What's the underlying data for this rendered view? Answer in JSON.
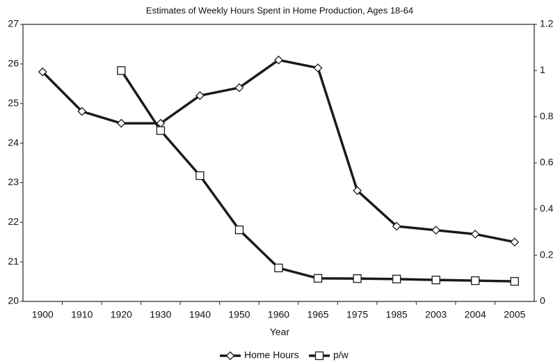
{
  "chart_data": {
    "type": "line",
    "title": "Estimates of Weekly Hours Spent in Home Production, Ages 18-64",
    "x_label": "Year",
    "categories": [
      "1900",
      "1910",
      "1920",
      "1930",
      "1940",
      "1950",
      "1960",
      "1965",
      "1975",
      "1985",
      "2003",
      "2004",
      "2005"
    ],
    "series": [
      {
        "name": "Home Hours",
        "color": "#1a1a1a",
        "marker": "diamond",
        "values": [
          25.8,
          24.8,
          24.5,
          24.5,
          25.2,
          25.4,
          26.1,
          25.9,
          22.8,
          21.9,
          21.8,
          21.7,
          21.5
        ]
      },
      {
        "name": "p/w",
        "color": "#1a1a1a",
        "marker": "square",
        "axis": "y2",
        "values": [
          null,
          null,
          1.0,
          0.74,
          0.545,
          0.31,
          0.145,
          0.1,
          0.099,
          0.097,
          0.093,
          0.09,
          0.087
        ]
      }
    ],
    "ylim": [
      20,
      27
    ],
    "yticks": [
      20,
      21,
      22,
      23,
      24,
      25,
      26,
      27
    ],
    "y2lim": [
      0,
      1.2
    ],
    "y2ticks": [
      0,
      0.2,
      0.4,
      0.6,
      0.8,
      1,
      1.2
    ],
    "grid": false,
    "legend": "bottom"
  }
}
